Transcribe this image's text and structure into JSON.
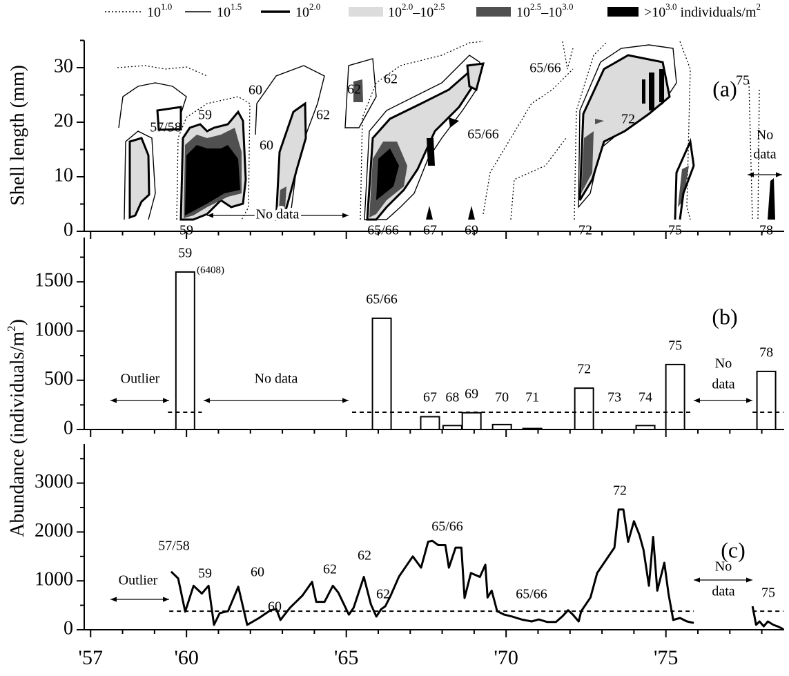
{
  "chart_data": [
    {
      "type": "contour",
      "y_label": "Shell length (mm)",
      "ylim": [
        0,
        35
      ],
      "yticks": [
        0,
        10,
        20,
        30
      ],
      "yminor_ticks": [
        5,
        15,
        25,
        35
      ],
      "panel_label": "(a)",
      "legend": [
        {
          "text": "10",
          "sup": "1.0",
          "line": "dotted"
        },
        {
          "text": "10",
          "sup": "1.5",
          "line": "thin"
        },
        {
          "text": "10",
          "sup": "2.0",
          "line": "thick"
        },
        {
          "text": "10",
          "sup": "2.0",
          "text2": "–10",
          "sup2": "2.5",
          "color": "#dcdcdc"
        },
        {
          "text": "10",
          "sup": "2.5",
          "text2": "–10",
          "sup2": "3.0",
          "color": "#505050"
        },
        {
          "text": ">10",
          "sup": "3.0",
          "text2": " individuals/m",
          "sup2": "2",
          "color": "#000000"
        }
      ],
      "annotations": [
        "57/58",
        "59",
        "60",
        "60",
        "62",
        "62",
        "62",
        "65/66",
        "65/66",
        "72",
        "75",
        "No data",
        "No",
        "data"
      ],
      "bottom_labels": [
        "59",
        "65/66",
        "67",
        "69",
        "72",
        "75",
        "78"
      ]
    },
    {
      "type": "bar",
      "y_label": "Abundance (individuals/m",
      "y_label_sup": "2",
      "y_label_end": ")",
      "categories": [
        "59",
        "65/66",
        "67",
        "68",
        "69",
        "70",
        "71",
        "72",
        "73",
        "74",
        "75",
        "78"
      ],
      "x": [
        59.96,
        66.11,
        67.62,
        68.32,
        68.92,
        69.87,
        70.82,
        72.44,
        73.39,
        74.36,
        75.29,
        78.14
      ],
      "values": [
        1600,
        1130,
        130,
        40,
        170,
        50,
        10,
        420,
        0,
        40,
        660,
        590
      ],
      "color": "#ffffff",
      "ylim": [
        0,
        1950
      ],
      "yticks": [
        0,
        500,
        1000,
        1500
      ],
      "yminor_ticks": [
        250,
        750,
        1250,
        1750
      ],
      "threshold": 175,
      "threshold_segments": [
        [
          59.42,
          60.48
        ],
        [
          65.18,
          75.87
        ],
        [
          77.71,
          78.68
        ]
      ],
      "panel_label": "(b)",
      "annotations": [
        "(6408)",
        "Outlier",
        "No data",
        "No",
        "data"
      ]
    },
    {
      "type": "line",
      "x": [
        59.52,
        59.74,
        59.96,
        60.22,
        60.48,
        60.69,
        60.86,
        61.04,
        61.3,
        61.62,
        61.9,
        62.27,
        62.63,
        62.81,
        62.94,
        63.24,
        63.63,
        63.93,
        64.06,
        64.32,
        64.58,
        64.75,
        65.08,
        65.23,
        65.55,
        65.77,
        65.94,
        66.09,
        66.22,
        66.39,
        66.65,
        67.08,
        67.34,
        67.56,
        67.69,
        67.88,
        68.1,
        68.21,
        68.42,
        68.6,
        68.7,
        68.9,
        69.18,
        69.35,
        69.42,
        69.55,
        69.72,
        69.94,
        70.19,
        70.48,
        70.8,
        71.02,
        71.28,
        71.56,
        71.77,
        71.94,
        72.09,
        72.27,
        72.35,
        72.64,
        72.85,
        73.17,
        73.39,
        73.52,
        73.67,
        73.82,
        74.0,
        74.17,
        74.3,
        74.47,
        74.6,
        74.73,
        74.95,
        75.08,
        75.23,
        75.44,
        75.66,
        75.87,
        null,
        77.71,
        77.82,
        77.93,
        78.06,
        78.19,
        78.36,
        78.53,
        78.68
      ],
      "values": [
        1190,
        1050,
        370,
        900,
        740,
        900,
        100,
        340,
        380,
        880,
        100,
        240,
        400,
        420,
        200,
        450,
        700,
        980,
        570,
        570,
        900,
        760,
        310,
        450,
        1080,
        520,
        270,
        420,
        480,
        700,
        1090,
        1500,
        1270,
        1800,
        1820,
        1730,
        1730,
        1270,
        1680,
        1680,
        650,
        1160,
        1080,
        1330,
        660,
        800,
        380,
        310,
        270,
        210,
        170,
        210,
        160,
        160,
        280,
        400,
        310,
        170,
        380,
        660,
        1160,
        1470,
        1680,
        2460,
        2460,
        1800,
        2220,
        1940,
        1630,
        900,
        1900,
        800,
        1370,
        740,
        200,
        240,
        170,
        140,
        null,
        480,
        100,
        170,
        70,
        170,
        100,
        60,
        10
      ],
      "color": "#000000",
      "xlim": [
        56.8,
        78.7
      ],
      "xticks": [
        {
          "value": 57,
          "label": "'57"
        },
        {
          "value": 60,
          "label": "'60"
        },
        {
          "value": 65,
          "label": "'65"
        },
        {
          "value": 70,
          "label": "'70"
        },
        {
          "value": 75,
          "label": "'75"
        }
      ],
      "xminor_ticks": [
        58,
        59,
        61,
        62,
        63,
        64,
        66,
        67,
        68,
        69,
        71,
        72,
        73,
        74,
        76,
        77,
        78
      ],
      "ylim": [
        0,
        3800
      ],
      "yticks": [
        0,
        1000,
        2000,
        3000
      ],
      "yminor_ticks": [
        500,
        1500,
        2500,
        3500
      ],
      "threshold": 380,
      "threshold_segments": [
        [
          59.46,
          75.87
        ],
        [
          77.71,
          78.68
        ]
      ],
      "panel_label": "(c)",
      "annotations": [
        "57/58",
        "59",
        "60",
        "60",
        "62",
        "62",
        "62",
        "65/66",
        "65/66",
        "72",
        "Outlier",
        "No",
        "data",
        "75"
      ]
    }
  ]
}
